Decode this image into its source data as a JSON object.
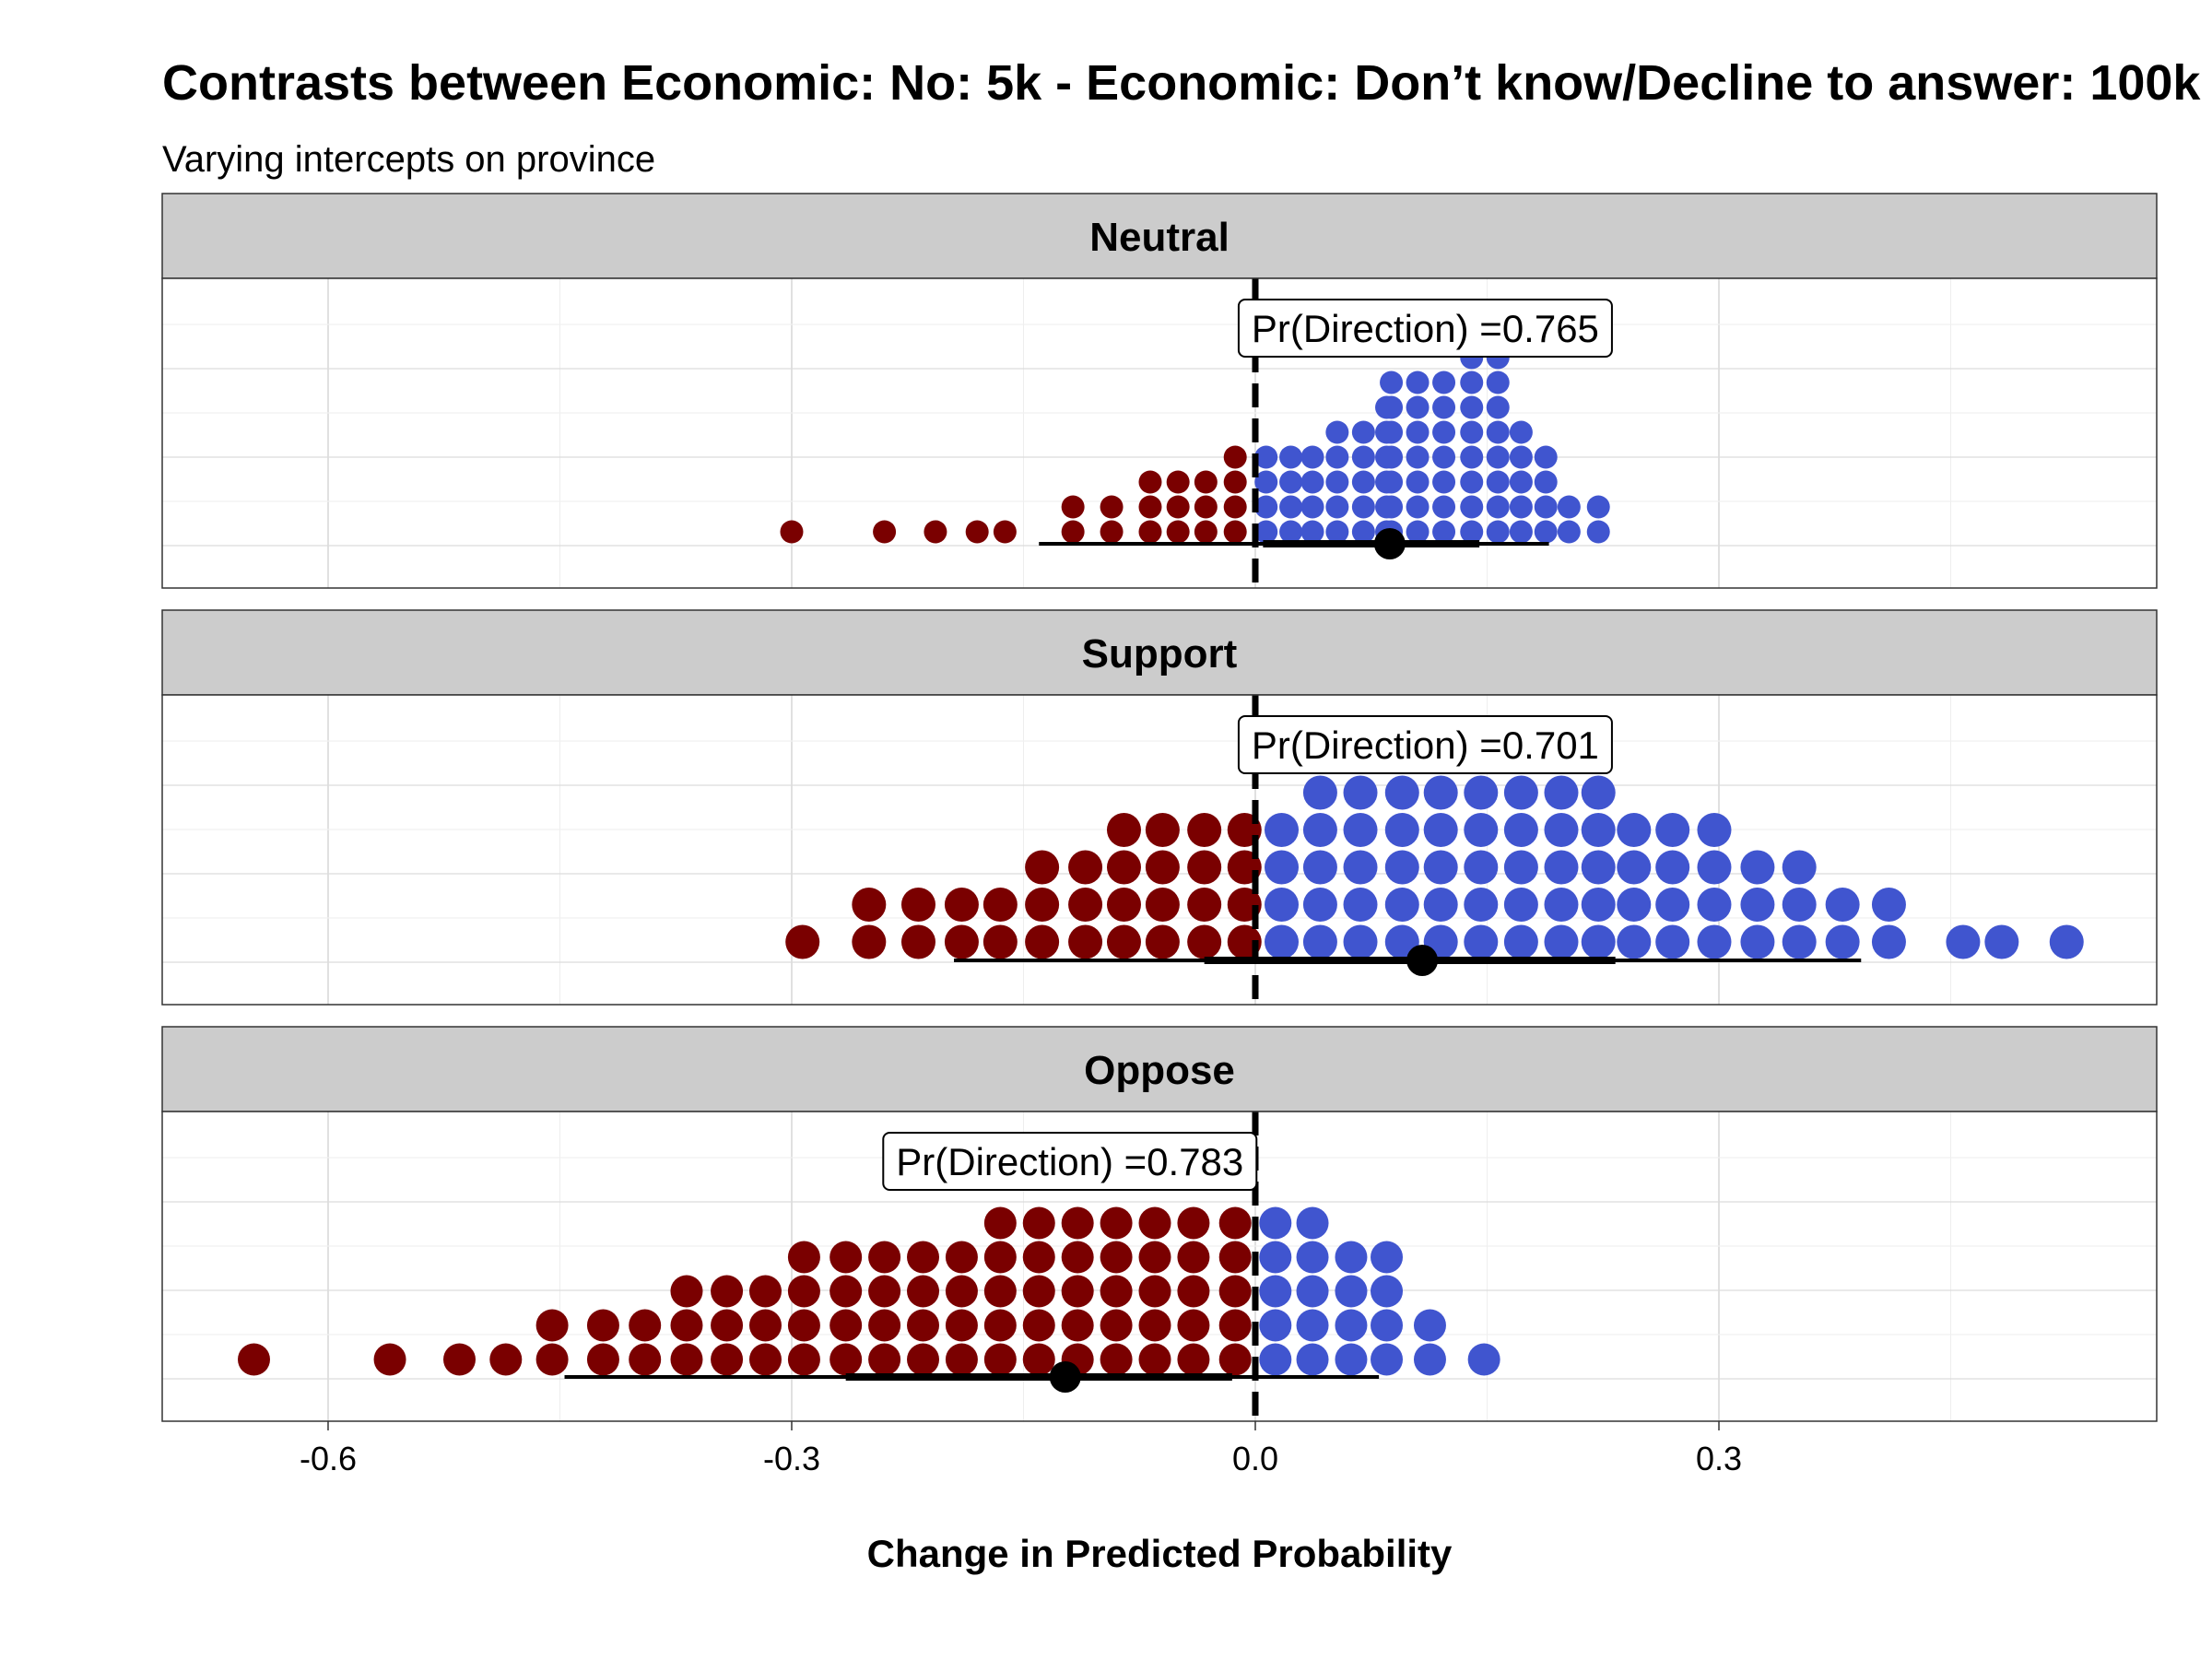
{
  "chart_data": {
    "type": "dotplot",
    "title": "Contrasts between Economic: No: 5k - Economic: Don’t know/Decline to answer: 100k",
    "subtitle": "Varying intercepts on province",
    "xlabel": "Change in Predicted Probability",
    "xlim": [
      -0.71,
      0.58
    ],
    "x_ticks": [
      -0.6,
      -0.3,
      0.0,
      0.3
    ],
    "x_tick_labels": [
      "-0.6",
      "-0.3",
      "0.0",
      "0.3"
    ],
    "grid": true,
    "reference_line": 0,
    "colors": {
      "negative": "#7a0000",
      "positive": "#4055cf",
      "interval": "#000000",
      "strip": "#cccccc"
    },
    "facets": [
      {
        "label": "Neutral",
        "direction_label": "Pr(Direction) =0.765",
        "label_x": 0.11,
        "point": 0.087,
        "interval_inner": [
          0.005,
          0.145
        ],
        "interval_outer": [
          -0.14,
          0.19
        ],
        "dots": [
          {
            "x": -0.3,
            "n": 1
          },
          {
            "x": -0.24,
            "n": 1
          },
          {
            "x": -0.207,
            "n": 1
          },
          {
            "x": -0.18,
            "n": 1
          },
          {
            "x": -0.162,
            "n": 1
          },
          {
            "x": -0.118,
            "n": 2
          },
          {
            "x": -0.093,
            "n": 2
          },
          {
            "x": -0.068,
            "n": 3
          },
          {
            "x": -0.05,
            "n": 3
          },
          {
            "x": -0.032,
            "n": 3
          },
          {
            "x": -0.013,
            "n": 4
          },
          {
            "x": 0.007,
            "n": 4
          },
          {
            "x": 0.023,
            "n": 4
          },
          {
            "x": 0.037,
            "n": 4
          },
          {
            "x": 0.053,
            "n": 5
          },
          {
            "x": 0.07,
            "n": 5
          },
          {
            "x": 0.085,
            "n": 6
          },
          {
            "x": 0.088,
            "n": 7
          },
          {
            "x": 0.105,
            "n": 7
          },
          {
            "x": 0.122,
            "n": 7
          },
          {
            "x": 0.14,
            "n": 8
          },
          {
            "x": 0.157,
            "n": 8
          },
          {
            "x": 0.172,
            "n": 5
          },
          {
            "x": 0.188,
            "n": 4
          },
          {
            "x": 0.203,
            "n": 2
          },
          {
            "x": 0.222,
            "n": 2
          }
        ]
      },
      {
        "label": "Support",
        "direction_label": "Pr(Direction) =0.701",
        "label_x": 0.11,
        "point": 0.108,
        "interval_inner": [
          -0.033,
          0.233
        ],
        "interval_outer": [
          -0.195,
          0.392
        ],
        "dots": [
          {
            "x": -0.293,
            "n": 1
          },
          {
            "x": -0.25,
            "n": 2
          },
          {
            "x": -0.218,
            "n": 2
          },
          {
            "x": -0.19,
            "n": 2
          },
          {
            "x": -0.165,
            "n": 2
          },
          {
            "x": -0.138,
            "n": 3
          },
          {
            "x": -0.11,
            "n": 3
          },
          {
            "x": -0.085,
            "n": 4
          },
          {
            "x": -0.06,
            "n": 4
          },
          {
            "x": -0.033,
            "n": 4
          },
          {
            "x": -0.007,
            "n": 4
          },
          {
            "x": -0.007,
            "n": 0
          },
          {
            "x": 0.017,
            "n": 4
          },
          {
            "x": 0.042,
            "n": 5
          },
          {
            "x": 0.068,
            "n": 5
          },
          {
            "x": 0.095,
            "n": 5
          },
          {
            "x": 0.12,
            "n": 5
          },
          {
            "x": 0.146,
            "n": 5
          },
          {
            "x": 0.172,
            "n": 5
          },
          {
            "x": 0.198,
            "n": 5
          },
          {
            "x": 0.222,
            "n": 5
          },
          {
            "x": 0.245,
            "n": 4
          },
          {
            "x": 0.27,
            "n": 4
          },
          {
            "x": 0.297,
            "n": 4
          },
          {
            "x": 0.325,
            "n": 3
          },
          {
            "x": 0.352,
            "n": 3
          },
          {
            "x": 0.38,
            "n": 2
          },
          {
            "x": 0.41,
            "n": 2
          },
          {
            "x": 0.458,
            "n": 1
          },
          {
            "x": 0.483,
            "n": 1
          },
          {
            "x": 0.525,
            "n": 1
          }
        ]
      },
      {
        "label": "Oppose",
        "direction_label": "Pr(Direction) =0.783",
        "label_x": -0.12,
        "point": -0.123,
        "interval_inner": [
          -0.265,
          -0.015
        ],
        "interval_outer": [
          -0.447,
          0.08
        ],
        "dots": [
          {
            "x": -0.648,
            "n": 1
          },
          {
            "x": -0.56,
            "n": 1
          },
          {
            "x": -0.515,
            "n": 1
          },
          {
            "x": -0.485,
            "n": 1
          },
          {
            "x": -0.455,
            "n": 2
          },
          {
            "x": -0.422,
            "n": 2
          },
          {
            "x": -0.395,
            "n": 2
          },
          {
            "x": -0.368,
            "n": 3
          },
          {
            "x": -0.342,
            "n": 3
          },
          {
            "x": -0.317,
            "n": 3
          },
          {
            "x": -0.292,
            "n": 4
          },
          {
            "x": -0.265,
            "n": 4
          },
          {
            "x": -0.24,
            "n": 4
          },
          {
            "x": -0.215,
            "n": 4
          },
          {
            "x": -0.19,
            "n": 4
          },
          {
            "x": -0.165,
            "n": 5
          },
          {
            "x": -0.14,
            "n": 5
          },
          {
            "x": -0.115,
            "n": 5
          },
          {
            "x": -0.09,
            "n": 5
          },
          {
            "x": -0.065,
            "n": 5
          },
          {
            "x": -0.04,
            "n": 5
          },
          {
            "x": -0.013,
            "n": 5
          },
          {
            "x": 0.013,
            "n": 5
          },
          {
            "x": 0.037,
            "n": 5
          },
          {
            "x": 0.062,
            "n": 4
          },
          {
            "x": 0.085,
            "n": 4
          },
          {
            "x": 0.113,
            "n": 2
          },
          {
            "x": 0.148,
            "n": 1
          }
        ]
      }
    ]
  }
}
